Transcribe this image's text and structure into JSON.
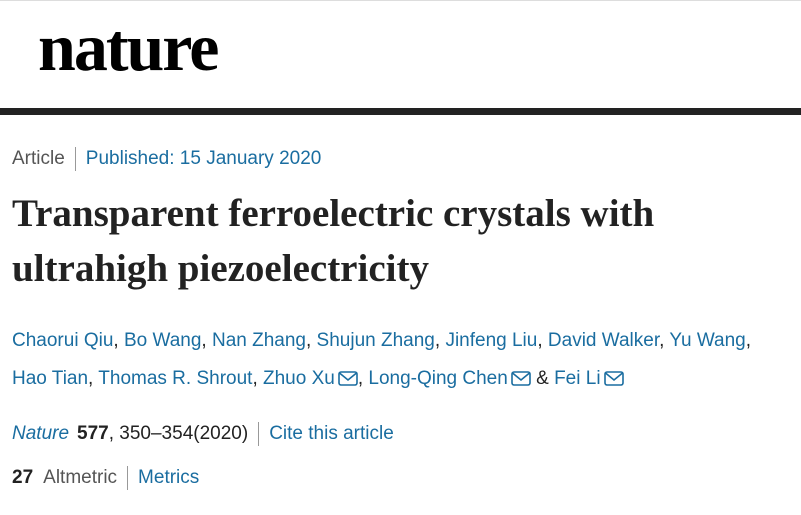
{
  "header": {
    "logo": "nature"
  },
  "article": {
    "type": "Article",
    "published": "Published: 15 January 2020",
    "title": "Transparent ferroelectric crystals with ultrahigh piezoelectricity",
    "authors": [
      {
        "name": "Chaorui Qiu",
        "email": false
      },
      {
        "name": "Bo Wang",
        "email": false
      },
      {
        "name": "Nan Zhang",
        "email": false
      },
      {
        "name": "Shujun Zhang",
        "email": false
      },
      {
        "name": "Jinfeng Liu",
        "email": false
      },
      {
        "name": "David Walker",
        "email": false
      },
      {
        "name": "Yu Wang",
        "email": false
      },
      {
        "name": "Hao Tian",
        "email": false
      },
      {
        "name": "Thomas R. Shrout",
        "email": false
      },
      {
        "name": "Zhuo Xu",
        "email": true
      },
      {
        "name": "Long-Qing Chen",
        "email": true
      },
      {
        "name": "Fei Li",
        "email": true
      }
    ],
    "author_separator": ",",
    "final_separator": "&",
    "citation": {
      "journal": "Nature",
      "volume": "577",
      "rest": ", 350–354(2020)",
      "cite_link": "Cite this article"
    },
    "metrics": {
      "altmetric_score": "27",
      "altmetric_label": "Altmetric",
      "metrics_link": "Metrics"
    }
  }
}
